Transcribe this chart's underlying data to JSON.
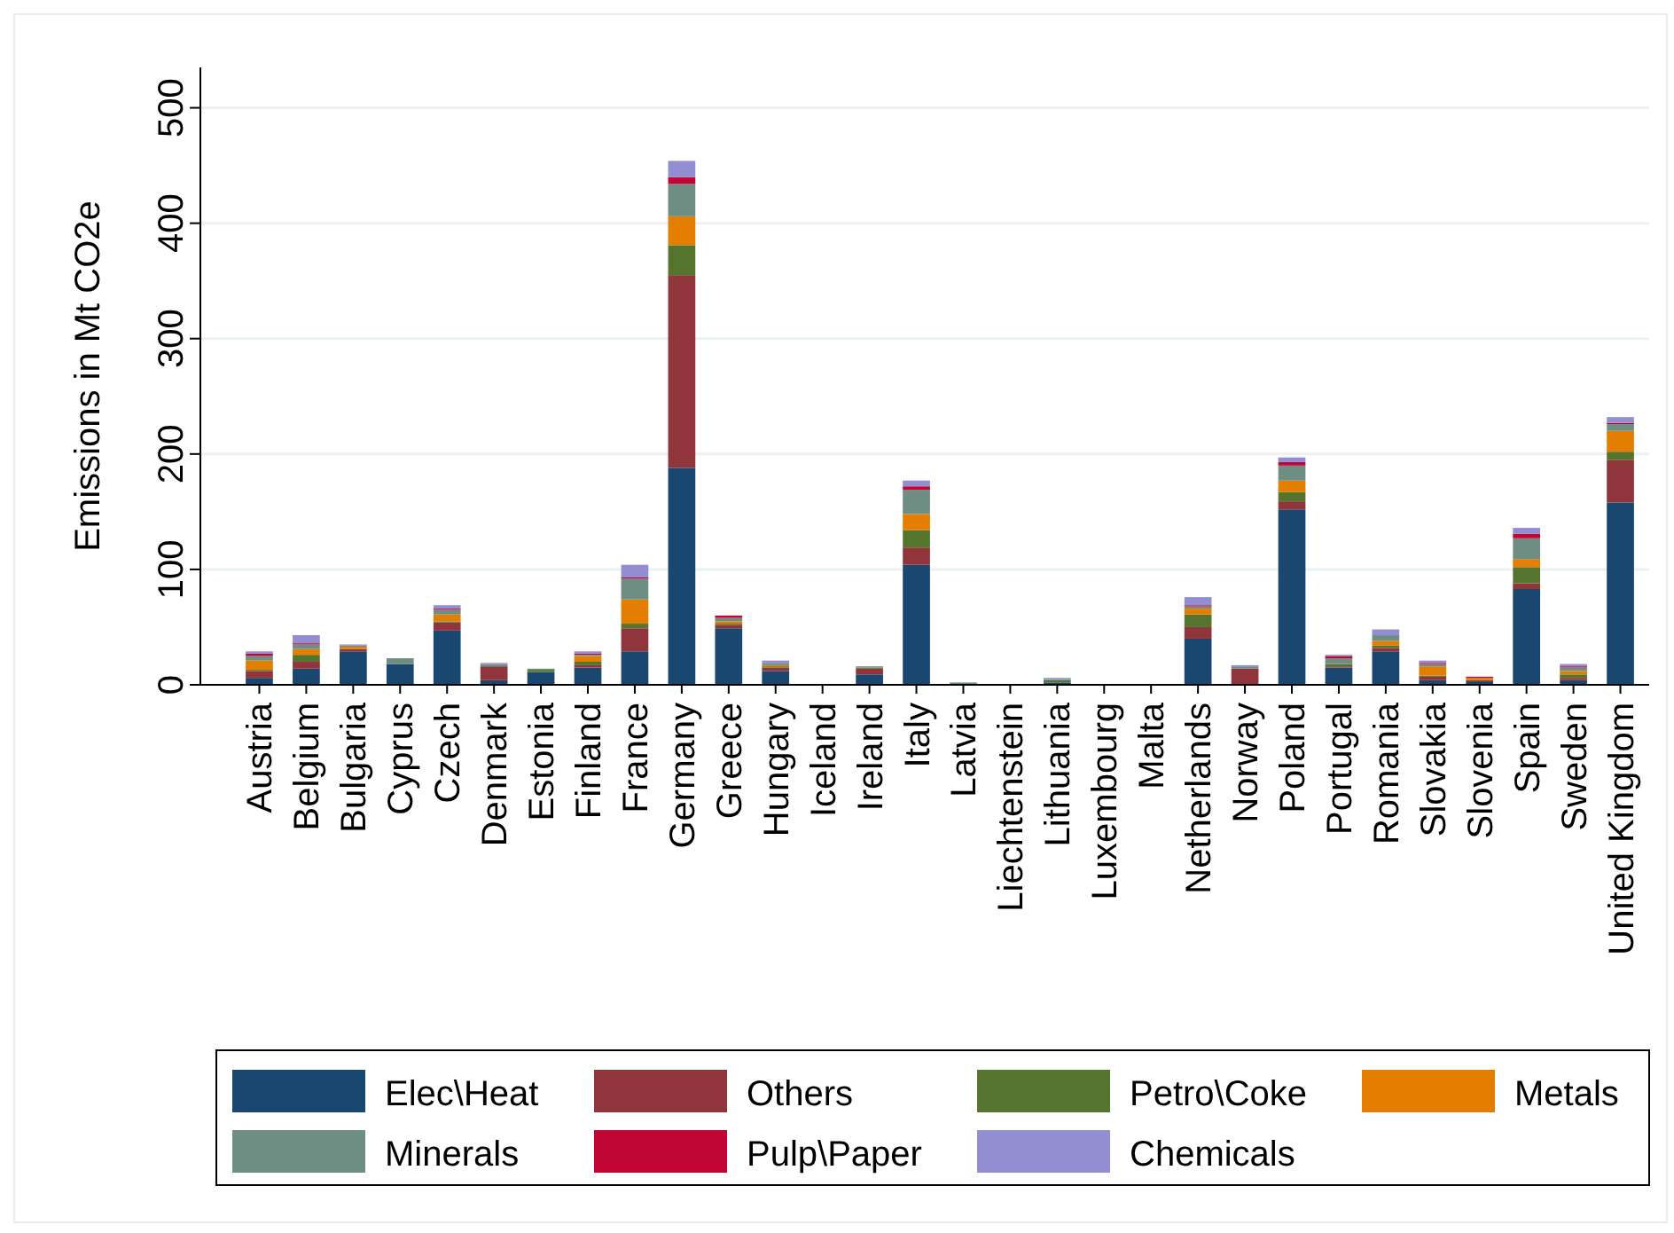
{
  "chart_data": {
    "type": "bar",
    "stacked": true,
    "ylabel": "Emissions in Mt CO2e",
    "categories": [
      "Austria",
      "Belgium",
      "Bulgaria",
      "Cyprus",
      "Czech",
      "Denmark",
      "Estonia",
      "Finland",
      "France",
      "Germany",
      "Greece",
      "Hungary",
      "Iceland",
      "Ireland",
      "Italy",
      "Latvia",
      "Liechtenstein",
      "Lithuania",
      "Luxembourg",
      "Malta",
      "Netherlands",
      "Norway",
      "Poland",
      "Portugal",
      "Romania",
      "Slovakia",
      "Slovenia",
      "Spain",
      "Sweden",
      "United Kingdom"
    ],
    "series": [
      {
        "name": "Elec\\Heat",
        "color": "#1a476f",
        "values": [
          6,
          14,
          29,
          18,
          47,
          4,
          11,
          15,
          29,
          188,
          49,
          12,
          0,
          9,
          104,
          null,
          0,
          2,
          null,
          null,
          40,
          null,
          152,
          15,
          29,
          4,
          3,
          83,
          4,
          158
        ]
      },
      {
        "name": "Others",
        "color": "#90353b",
        "values": [
          6,
          6,
          2,
          0,
          7,
          12,
          0,
          2,
          20,
          167,
          3,
          3,
          0,
          5,
          15,
          0,
          0,
          0,
          0,
          0,
          10,
          14,
          7,
          1,
          3,
          3,
          1,
          5,
          2,
          37
        ]
      },
      {
        "name": "Petro\\Coke",
        "color": "#55752f",
        "values": [
          1,
          6,
          0,
          0,
          1,
          0,
          2,
          3,
          4,
          26,
          1,
          1,
          0,
          1,
          15,
          0,
          0,
          2,
          0,
          0,
          11,
          0,
          8,
          2,
          2,
          1,
          0,
          14,
          3,
          7
        ]
      },
      {
        "name": "Metals",
        "color": "#e37e00",
        "values": [
          8,
          5,
          2,
          0,
          6,
          0,
          0,
          5,
          21,
          25,
          2,
          1,
          0,
          0,
          14,
          0,
          0,
          0,
          0,
          0,
          5,
          0,
          10,
          0,
          4,
          8,
          2,
          7,
          3,
          18
        ]
      },
      {
        "name": "Minerals",
        "color": "#6e8e84",
        "values": [
          4,
          4,
          1,
          5,
          4,
          2,
          1,
          1,
          18,
          28,
          3,
          2,
          0,
          1,
          21,
          2,
          0,
          1,
          0,
          0,
          2,
          2,
          13,
          5,
          5,
          2,
          0,
          18,
          3,
          6
        ]
      },
      {
        "name": "Pulp\\Paper",
        "color": "#c10534",
        "values": [
          2,
          1,
          0,
          0,
          1,
          0,
          0,
          1,
          1,
          6,
          2,
          0,
          0,
          0,
          3,
          0,
          0,
          0,
          0,
          0,
          1,
          0,
          3,
          2,
          0,
          1,
          1,
          4,
          1,
          1
        ]
      },
      {
        "name": "Chemicals",
        "color": "#938dd2",
        "values": [
          2,
          7,
          1,
          0,
          3,
          1,
          0,
          2,
          11,
          14,
          0,
          2,
          0,
          0,
          5,
          0,
          0,
          1,
          0,
          0,
          7,
          1,
          4,
          1,
          5,
          2,
          0,
          5,
          2,
          5
        ]
      }
    ],
    "ylim": [
      0,
      535
    ],
    "yticks": [
      0,
      100,
      200,
      300,
      400,
      500
    ],
    "grid": "y",
    "legend": "bottom"
  }
}
